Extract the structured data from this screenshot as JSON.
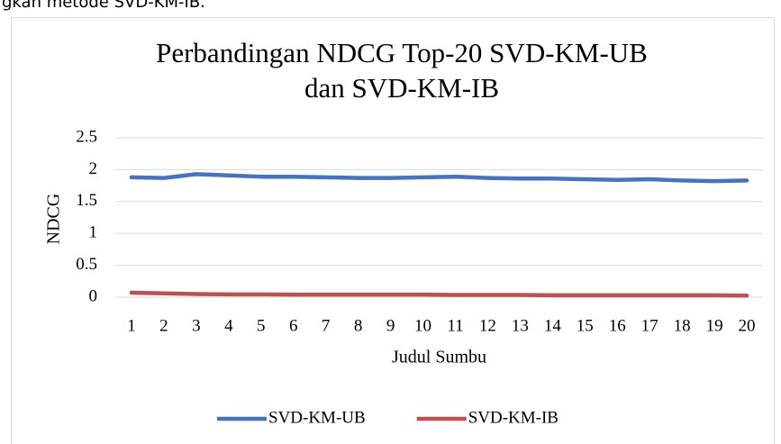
{
  "caption": "gkan metode SVD-KM-IB.",
  "chart_data": {
    "type": "line",
    "title": [
      "Perbandingan NDCG Top-20 SVD-KM-UB",
      "dan SVD-KM-IB"
    ],
    "x_label": "Judul Sumbu",
    "y_label": "NDCG",
    "categories": [
      1,
      2,
      3,
      4,
      5,
      6,
      7,
      8,
      9,
      10,
      11,
      12,
      13,
      14,
      15,
      16,
      17,
      18,
      19,
      20
    ],
    "series": [
      {
        "name": "SVD-KM-UB",
        "color": "#4472c4",
        "values": [
          1.88,
          1.87,
          1.93,
          1.91,
          1.89,
          1.89,
          1.88,
          1.87,
          1.87,
          1.88,
          1.89,
          1.87,
          1.86,
          1.86,
          1.85,
          1.84,
          1.85,
          1.83,
          1.82,
          1.83
        ]
      },
      {
        "name": "SVD-KM-IB",
        "color": "#c0504d",
        "values": [
          0.07,
          0.06,
          0.05,
          0.045,
          0.045,
          0.04,
          0.04,
          0.04,
          0.04,
          0.04,
          0.035,
          0.035,
          0.035,
          0.03,
          0.03,
          0.03,
          0.03,
          0.03,
          0.03,
          0.025
        ]
      }
    ],
    "ylim": [
      0,
      2.5
    ],
    "yticks": [
      0,
      0.5,
      1,
      1.5,
      2,
      2.5
    ],
    "grid": true,
    "legend": "bottom"
  }
}
